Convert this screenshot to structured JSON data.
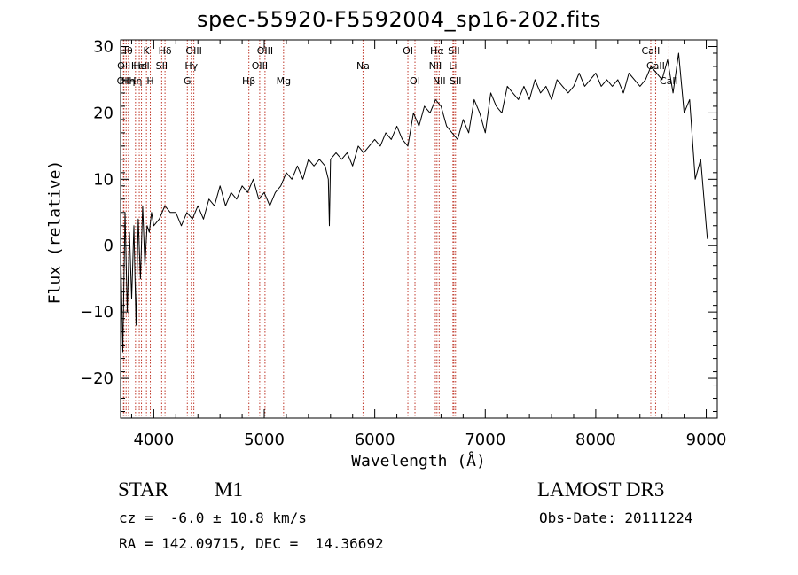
{
  "header": {
    "title": "spec-55920-F5592004_sp16-202.fits"
  },
  "chart_data": {
    "type": "line",
    "title": "spec-55920-F5592004_sp16-202.fits",
    "xlabel": "Wavelength (Å)",
    "ylabel": "Flux (relative)",
    "xlim": [
      3700,
      9100
    ],
    "ylim": [
      -26,
      31
    ],
    "x_ticks": [
      4000,
      5000,
      6000,
      7000,
      8000,
      9000
    ],
    "y_ticks": [
      -20,
      -10,
      0,
      10,
      20,
      30
    ],
    "series": [
      {
        "name": "flux",
        "x": [
          3700,
          3720,
          3740,
          3760,
          3780,
          3800,
          3820,
          3840,
          3860,
          3880,
          3900,
          3920,
          3940,
          3960,
          3980,
          4000,
          4050,
          4100,
          4150,
          4200,
          4250,
          4300,
          4350,
          4400,
          4450,
          4500,
          4550,
          4600,
          4650,
          4700,
          4750,
          4800,
          4850,
          4900,
          4950,
          5000,
          5050,
          5100,
          5150,
          5200,
          5250,
          5300,
          5350,
          5400,
          5450,
          5500,
          5550,
          5580,
          5590,
          5600,
          5650,
          5700,
          5750,
          5800,
          5850,
          5900,
          5950,
          6000,
          6050,
          6100,
          6150,
          6200,
          6250,
          6300,
          6350,
          6400,
          6450,
          6500,
          6550,
          6600,
          6650,
          6700,
          6750,
          6800,
          6850,
          6900,
          6950,
          7000,
          7050,
          7100,
          7150,
          7200,
          7250,
          7300,
          7350,
          7400,
          7450,
          7500,
          7550,
          7600,
          7650,
          7700,
          7750,
          7800,
          7850,
          7900,
          7950,
          8000,
          8050,
          8100,
          8150,
          8200,
          8250,
          8300,
          8350,
          8400,
          8450,
          8500,
          8550,
          8600,
          8650,
          8700,
          8750,
          8800,
          8850,
          8900,
          8950,
          9000,
          9010
        ],
        "y": [
          0,
          -16,
          5,
          -10,
          2,
          -8,
          3,
          -12,
          4,
          -5,
          6,
          -3,
          3,
          2,
          5,
          3,
          4,
          6,
          5,
          5,
          3,
          5,
          4,
          6,
          4,
          7,
          6,
          9,
          6,
          8,
          7,
          9,
          8,
          10,
          7,
          8,
          6,
          8,
          9,
          11,
          10,
          12,
          10,
          13,
          12,
          13,
          12,
          10,
          3,
          13,
          14,
          13,
          14,
          12,
          15,
          14,
          15,
          16,
          15,
          17,
          16,
          18,
          16,
          15,
          20,
          18,
          21,
          20,
          22,
          21,
          18,
          17,
          16,
          19,
          17,
          22,
          20,
          17,
          23,
          21,
          20,
          24,
          23,
          22,
          24,
          22,
          25,
          23,
          24,
          22,
          25,
          24,
          23,
          24,
          26,
          24,
          25,
          26,
          24,
          25,
          24,
          25,
          23,
          26,
          25,
          24,
          25,
          27,
          26,
          25,
          28,
          23,
          29,
          20,
          22,
          10,
          13,
          3,
          1
        ]
      }
    ],
    "lines": [
      {
        "wl": 3726,
        "row": 2,
        "label": "OII"
      },
      {
        "wl": 3730,
        "row": 1,
        "label": "OII"
      },
      {
        "wl": 3750,
        "row": 0,
        "label": "Hθ"
      },
      {
        "wl": 3771,
        "row": 2,
        "label": "Hη"
      },
      {
        "wl": 3835,
        "row": 2,
        "label": "Hη"
      },
      {
        "wl": 3869,
        "row": 1,
        "label": "HeI"
      },
      {
        "wl": 3889,
        "row": 1,
        "label": "HeI"
      },
      {
        "wl": 3934,
        "row": 0,
        "label": "K"
      },
      {
        "wl": 3969,
        "row": 2,
        "label": "H"
      },
      {
        "wl": 4072,
        "row": 1,
        "label": "SII"
      },
      {
        "wl": 4102,
        "row": 0,
        "label": "Hδ"
      },
      {
        "wl": 4304,
        "row": 2,
        "label": "G"
      },
      {
        "wl": 4340,
        "row": 1,
        "label": "Hγ"
      },
      {
        "wl": 4363,
        "row": 0,
        "label": "OIII"
      },
      {
        "wl": 4861,
        "row": 2,
        "label": "Hβ"
      },
      {
        "wl": 4959,
        "row": 1,
        "label": "OIII"
      },
      {
        "wl": 5007,
        "row": 0,
        "label": "OIII"
      },
      {
        "wl": 5175,
        "row": 2,
        "label": "Mg"
      },
      {
        "wl": 5894,
        "row": 1,
        "label": "Na"
      },
      {
        "wl": 6300,
        "row": 0,
        "label": "OI"
      },
      {
        "wl": 6364,
        "row": 2,
        "label": "OI"
      },
      {
        "wl": 6548,
        "row": 1,
        "label": "NII"
      },
      {
        "wl": 6563,
        "row": 0,
        "label": "Hα"
      },
      {
        "wl": 6583,
        "row": 2,
        "label": "NII"
      },
      {
        "wl": 6708,
        "row": 1,
        "label": "Li"
      },
      {
        "wl": 6716,
        "row": 0,
        "label": "SII"
      },
      {
        "wl": 6731,
        "row": 2,
        "label": "SII"
      },
      {
        "wl": 8498,
        "row": 0,
        "label": "CaII"
      },
      {
        "wl": 8542,
        "row": 1,
        "label": "CaII"
      },
      {
        "wl": 8662,
        "row": 2,
        "label": "CaII"
      }
    ]
  },
  "info": {
    "object_class": "STAR",
    "subclass": "M1",
    "survey": "LAMOST DR3",
    "redshift": "cz =  -6.0 ± 10.8 km/s",
    "obs_date": "Obs-Date: 20111224",
    "coords": "RA = 142.09715, DEC =  14.36692"
  }
}
